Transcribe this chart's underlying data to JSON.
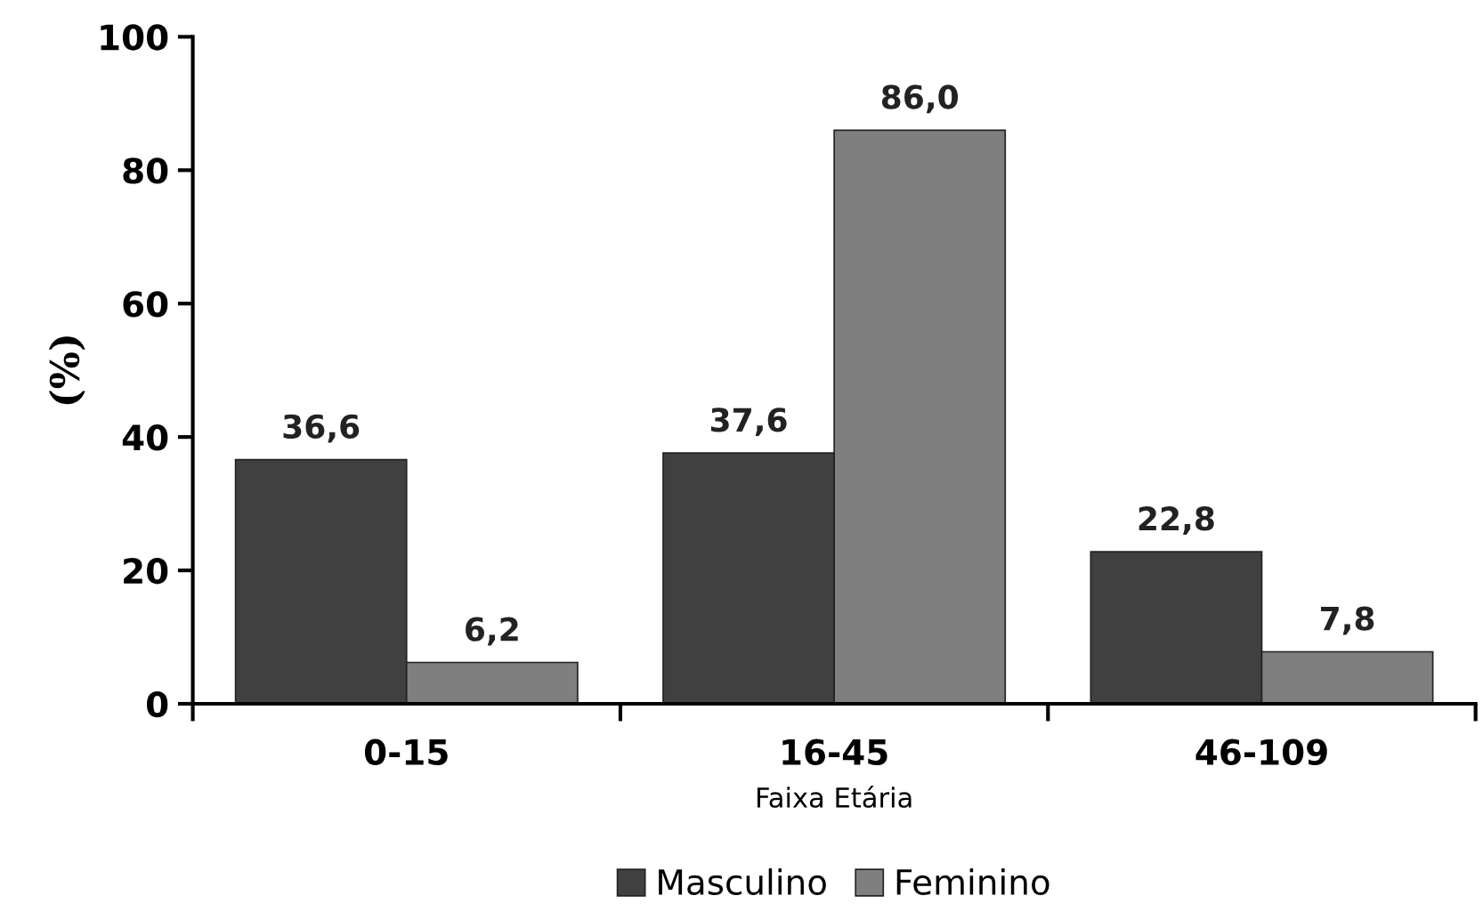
{
  "chart_data": {
    "type": "bar",
    "xlabel": "Faixa Etária",
    "ylabel": "(%)",
    "categories": [
      "0-15",
      "16-45",
      "46-109"
    ],
    "series": [
      {
        "name": "Masculino",
        "color": "#404040",
        "values": [
          36.6,
          37.6,
          22.8
        ],
        "value_labels": [
          "36,6",
          "37,6",
          "22,8"
        ]
      },
      {
        "name": "Feminino",
        "color": "#7f7f7f",
        "values": [
          6.2,
          86.0,
          7.8
        ],
        "value_labels": [
          "6,2",
          "86,0",
          "7,8"
        ]
      }
    ],
    "ylim": [
      0,
      100
    ],
    "yticks": [
      0,
      20,
      40,
      60,
      80,
      100
    ],
    "grid": false,
    "legend": "bottom"
  }
}
